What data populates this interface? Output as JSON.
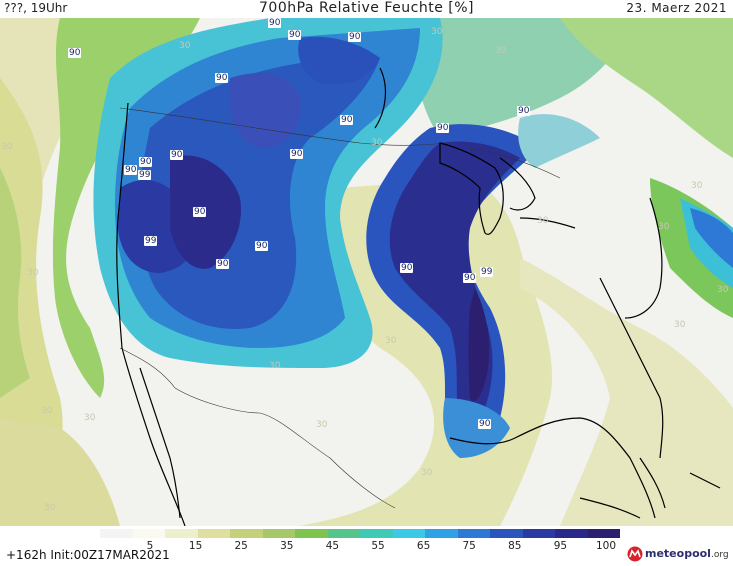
{
  "header": {
    "left": "???, 19Uhr",
    "title": "700hPa Relative Feuchte [%]",
    "date": "23. Maerz 2021"
  },
  "footer": {
    "init": "+162h  Init:00Z17MAR2021",
    "logo_name": "meteopool",
    "logo_suffix": ".org"
  },
  "scale": {
    "ticks": [
      "5",
      "15",
      "25",
      "35",
      "45",
      "55",
      "65",
      "75",
      "85",
      "95",
      "100"
    ],
    "colors": [
      "#f4f4f4",
      "#fafaf0",
      "#eeefcc",
      "#dfdfa0",
      "#c5d07d",
      "#a7c869",
      "#7ec44f",
      "#56c58b",
      "#3fcab8",
      "#3cc9e6",
      "#2fa2e6",
      "#2d79d5",
      "#2a55be",
      "#2a3aa2",
      "#2a2888",
      "#2c1f6f"
    ]
  },
  "map": {
    "contour_labels_90": [
      "90",
      "90",
      "90",
      "90",
      "90",
      "90",
      "90",
      "90",
      "90",
      "90",
      "90",
      "90",
      "90",
      "90",
      "90",
      "90",
      "90",
      "90",
      "90",
      "90"
    ],
    "contour_labels_99": [
      "99",
      "99",
      "99"
    ],
    "contour_labels_30": [
      "30",
      "30",
      "30",
      "30",
      "30",
      "30",
      "30",
      "30",
      "30",
      "30",
      "30",
      "30",
      "30",
      "30",
      "30",
      "30",
      "30",
      "30",
      "30",
      "30",
      "30"
    ]
  },
  "colors": {
    "dry": "#f4f4f4",
    "moist_low": "#dfdfa0",
    "moist_mid": "#7ec44f",
    "moist_high": "#3cc9e6",
    "saturated": "#2a3aa2",
    "very_saturated": "#2c1f6f"
  }
}
